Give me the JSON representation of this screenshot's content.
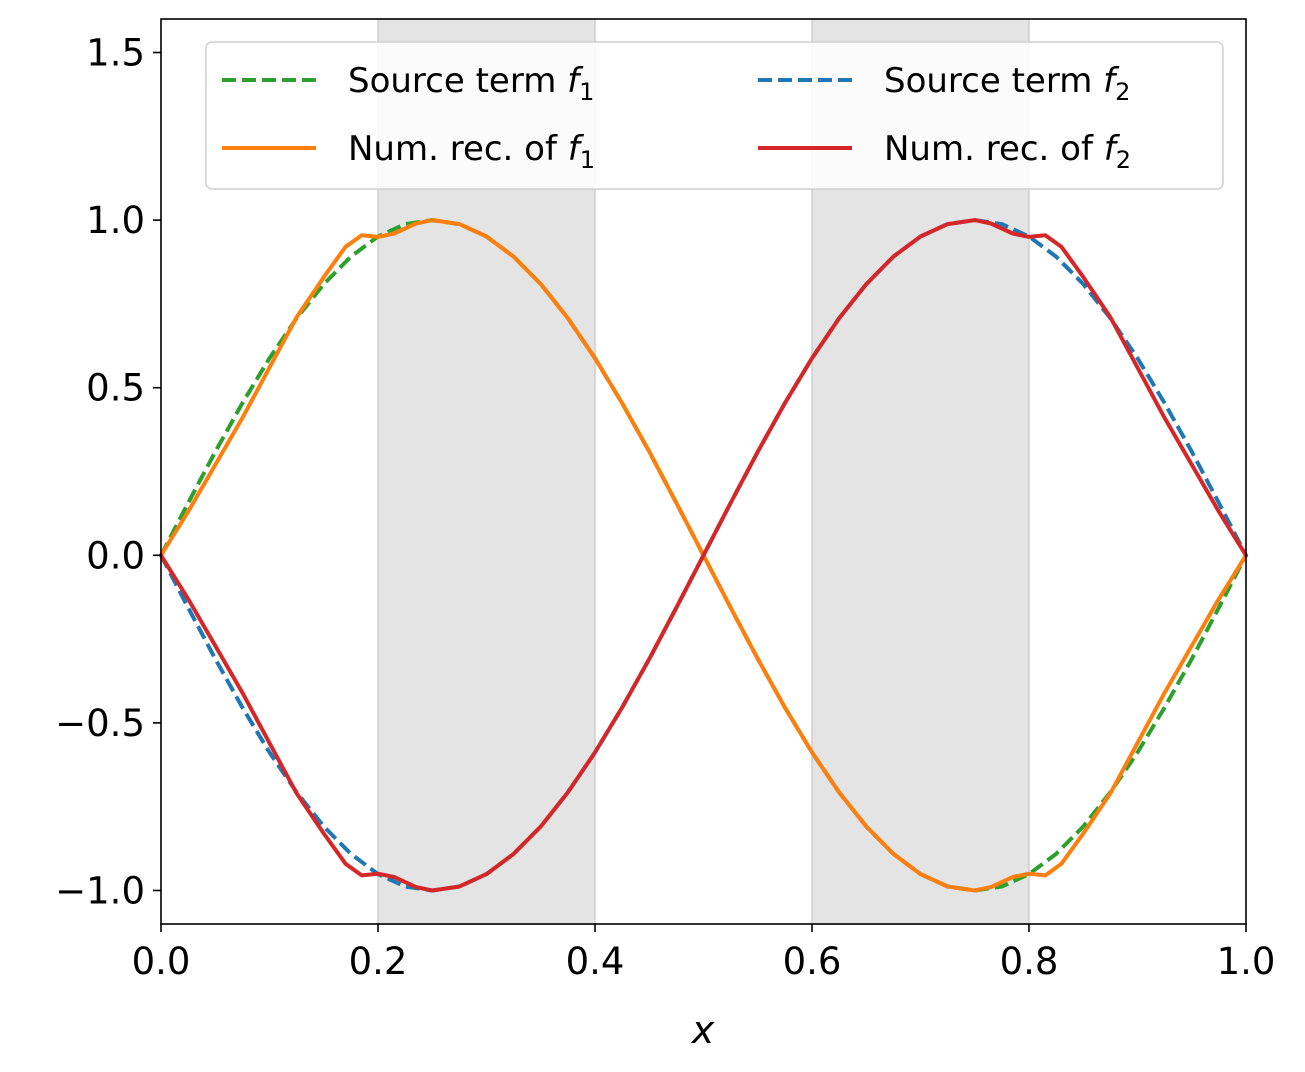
{
  "chart_data": {
    "type": "line",
    "title": "",
    "xlabel": "x",
    "ylabel": "",
    "xlim": [
      0.0,
      1.0
    ],
    "ylim": [
      -1.1,
      1.6
    ],
    "grid": false,
    "legend_placement": "top",
    "legend_columns": 2,
    "x_ticks": [
      0.0,
      0.2,
      0.4,
      0.6,
      0.8,
      1.0
    ],
    "x_tick_labels": [
      "0.0",
      "0.2",
      "0.4",
      "0.6",
      "0.8",
      "1.0"
    ],
    "y_ticks": [
      -1.0,
      -0.5,
      0.0,
      0.5,
      1.0,
      1.5
    ],
    "y_tick_labels": [
      "−1.0",
      "−0.5",
      "0.0",
      "0.5",
      "1.0",
      "1.5"
    ],
    "shaded_regions": [
      {
        "x_start": 0.2,
        "x_end": 0.4
      },
      {
        "x_start": 0.6,
        "x_end": 0.8
      }
    ],
    "series": [
      {
        "name": "Source term f1",
        "legend": {
          "prefix": "Source term ",
          "symbol": "f",
          "subscript": "1"
        },
        "color": "#2ca02c",
        "style": "dashed",
        "x": [
          0.0,
          0.025,
          0.05,
          0.075,
          0.1,
          0.125,
          0.15,
          0.175,
          0.2,
          0.225,
          0.25,
          0.275,
          0.3,
          0.325,
          0.35,
          0.375,
          0.4,
          0.425,
          0.45,
          0.475,
          0.5,
          0.525,
          0.55,
          0.575,
          0.6,
          0.625,
          0.65,
          0.675,
          0.7,
          0.725,
          0.75,
          0.775,
          0.8,
          0.825,
          0.85,
          0.875,
          0.9,
          0.925,
          0.95,
          0.975,
          1.0
        ],
        "y": [
          0.0,
          0.156,
          0.309,
          0.454,
          0.588,
          0.707,
          0.809,
          0.891,
          0.951,
          0.988,
          1.0,
          0.988,
          0.951,
          0.891,
          0.809,
          0.707,
          0.588,
          0.454,
          0.309,
          0.156,
          0.0,
          -0.156,
          -0.309,
          -0.454,
          -0.588,
          -0.707,
          -0.809,
          -0.891,
          -0.951,
          -0.988,
          -1.0,
          -0.988,
          -0.951,
          -0.891,
          -0.809,
          -0.707,
          -0.588,
          -0.454,
          -0.309,
          -0.156,
          0.0
        ]
      },
      {
        "name": "Source term f2",
        "legend": {
          "prefix": "Source term ",
          "symbol": "f",
          "subscript": "2"
        },
        "color": "#1f77b4",
        "style": "dashed",
        "x": [
          0.0,
          0.025,
          0.05,
          0.075,
          0.1,
          0.125,
          0.15,
          0.175,
          0.2,
          0.225,
          0.25,
          0.275,
          0.3,
          0.325,
          0.35,
          0.375,
          0.4,
          0.425,
          0.45,
          0.475,
          0.5,
          0.525,
          0.55,
          0.575,
          0.6,
          0.625,
          0.65,
          0.675,
          0.7,
          0.725,
          0.75,
          0.775,
          0.8,
          0.825,
          0.85,
          0.875,
          0.9,
          0.925,
          0.95,
          0.975,
          1.0
        ],
        "y": [
          0.0,
          -0.156,
          -0.309,
          -0.454,
          -0.588,
          -0.707,
          -0.809,
          -0.891,
          -0.951,
          -0.988,
          -1.0,
          -0.988,
          -0.951,
          -0.891,
          -0.809,
          -0.707,
          -0.588,
          -0.454,
          -0.309,
          -0.156,
          0.0,
          0.156,
          0.309,
          0.454,
          0.588,
          0.707,
          0.809,
          0.891,
          0.951,
          0.988,
          1.0,
          0.988,
          0.951,
          0.891,
          0.809,
          0.707,
          0.588,
          0.454,
          0.309,
          0.156,
          0.0
        ]
      },
      {
        "name": "Num. rec. of f1",
        "legend": {
          "prefix": "Num. rec. of ",
          "symbol": "f",
          "subscript": "1"
        },
        "color": "#ff7f0e",
        "style": "solid",
        "x": [
          0.0,
          0.025,
          0.05,
          0.075,
          0.1,
          0.125,
          0.15,
          0.17,
          0.185,
          0.2,
          0.215,
          0.235,
          0.25,
          0.275,
          0.3,
          0.325,
          0.35,
          0.375,
          0.4,
          0.425,
          0.45,
          0.475,
          0.5,
          0.525,
          0.55,
          0.575,
          0.6,
          0.625,
          0.65,
          0.675,
          0.7,
          0.725,
          0.75,
          0.765,
          0.785,
          0.8,
          0.815,
          0.83,
          0.85,
          0.875,
          0.9,
          0.925,
          0.95,
          0.975,
          1.0
        ],
        "y": [
          0.0,
          0.13,
          0.27,
          0.41,
          0.56,
          0.71,
          0.83,
          0.92,
          0.955,
          0.95,
          0.96,
          0.99,
          1.0,
          0.988,
          0.951,
          0.891,
          0.809,
          0.707,
          0.588,
          0.454,
          0.309,
          0.156,
          0.0,
          -0.156,
          -0.309,
          -0.454,
          -0.588,
          -0.707,
          -0.809,
          -0.891,
          -0.951,
          -0.988,
          -1.0,
          -0.99,
          -0.96,
          -0.95,
          -0.955,
          -0.92,
          -0.83,
          -0.71,
          -0.56,
          -0.41,
          -0.27,
          -0.13,
          0.0
        ]
      },
      {
        "name": "Num. rec. of f2",
        "legend": {
          "prefix": "Num. rec. of ",
          "symbol": "f",
          "subscript": "2"
        },
        "color": "#d62728",
        "style": "solid",
        "x": [
          0.0,
          0.025,
          0.05,
          0.075,
          0.1,
          0.125,
          0.15,
          0.17,
          0.185,
          0.2,
          0.215,
          0.235,
          0.25,
          0.275,
          0.3,
          0.325,
          0.35,
          0.375,
          0.4,
          0.425,
          0.45,
          0.475,
          0.5,
          0.525,
          0.55,
          0.575,
          0.6,
          0.625,
          0.65,
          0.675,
          0.7,
          0.725,
          0.75,
          0.765,
          0.785,
          0.8,
          0.815,
          0.83,
          0.85,
          0.875,
          0.9,
          0.925,
          0.95,
          0.975,
          1.0
        ],
        "y": [
          0.0,
          -0.13,
          -0.27,
          -0.41,
          -0.56,
          -0.71,
          -0.83,
          -0.92,
          -0.955,
          -0.95,
          -0.96,
          -0.99,
          -1.0,
          -0.988,
          -0.951,
          -0.891,
          -0.809,
          -0.707,
          -0.588,
          -0.454,
          -0.309,
          -0.156,
          0.0,
          0.156,
          0.309,
          0.454,
          0.588,
          0.707,
          0.809,
          0.891,
          0.951,
          0.988,
          1.0,
          0.99,
          0.96,
          0.95,
          0.955,
          0.92,
          0.83,
          0.71,
          0.56,
          0.41,
          0.27,
          0.13,
          0.0
        ]
      }
    ],
    "legend_order": [
      0,
      1,
      2,
      3
    ]
  }
}
